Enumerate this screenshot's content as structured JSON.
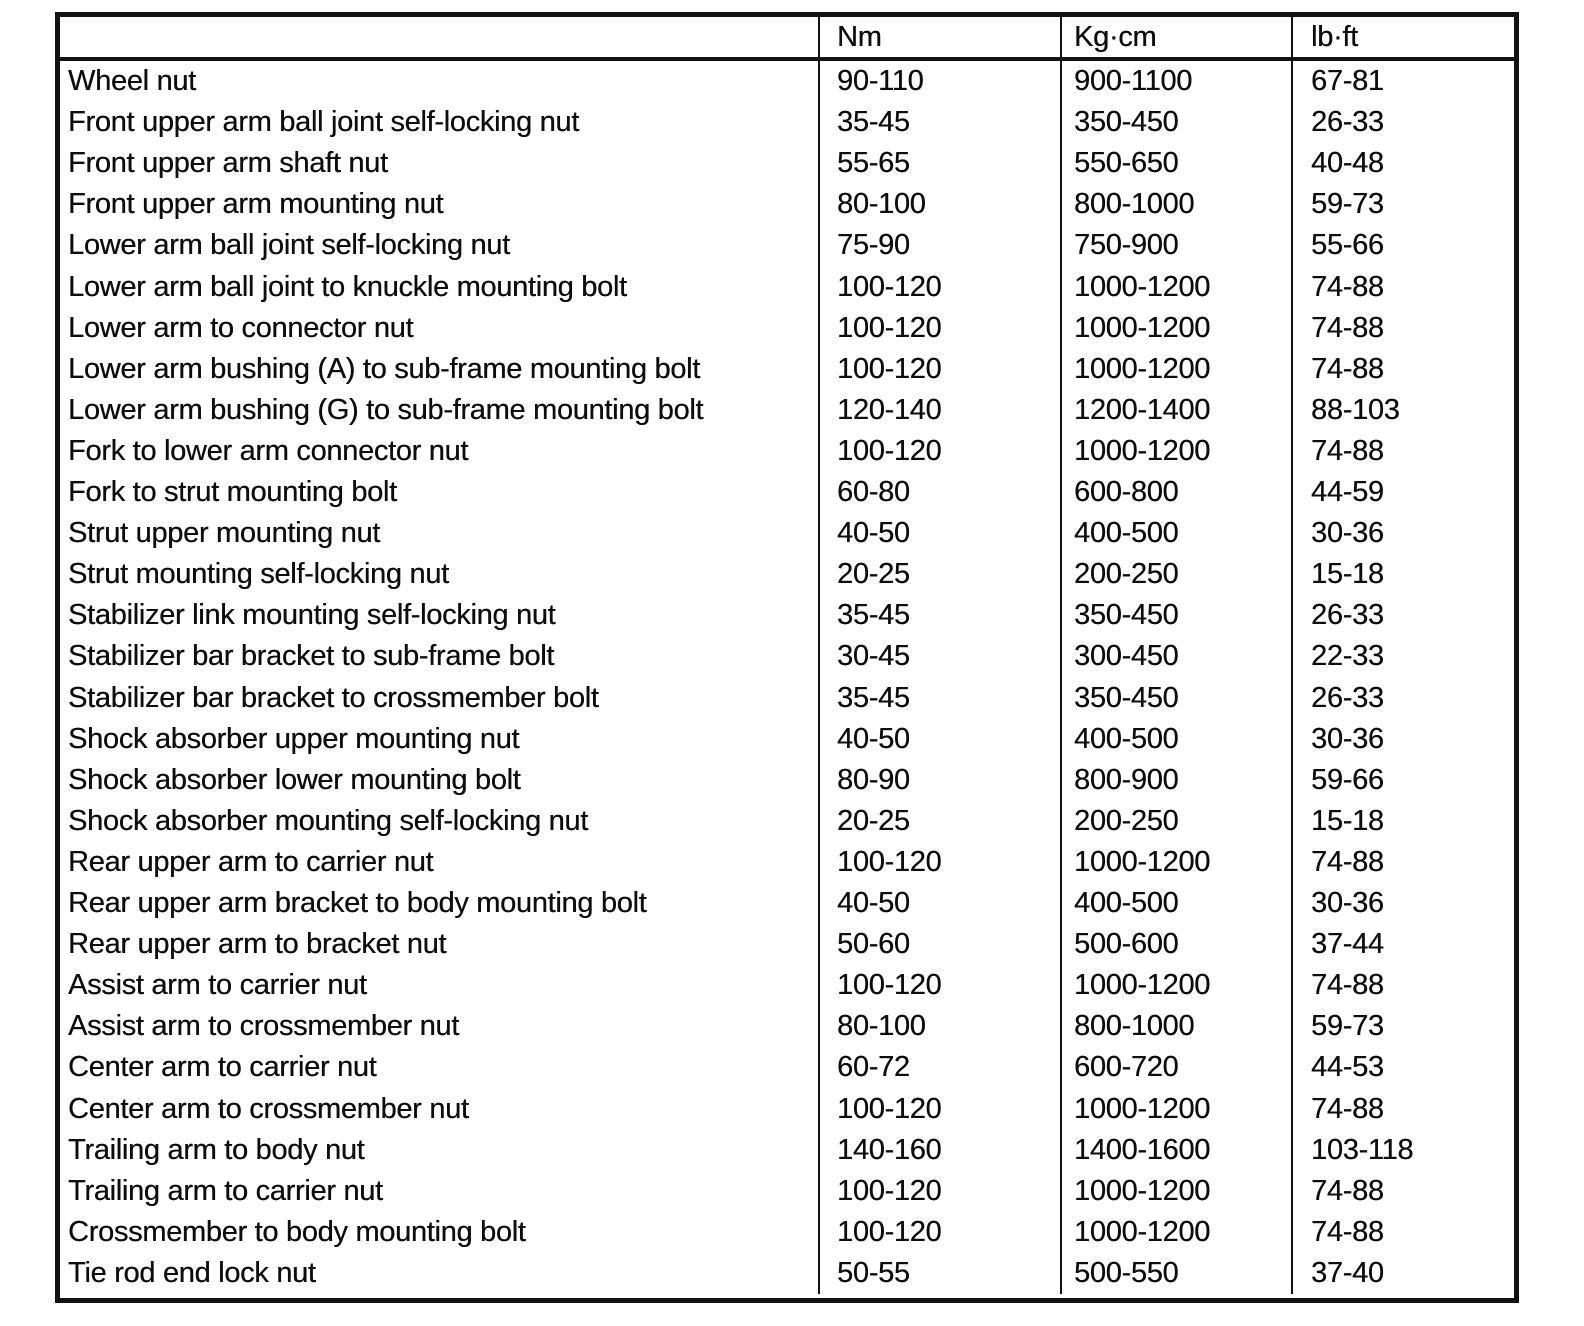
{
  "table": {
    "header": {
      "name": "",
      "nm": "Nm",
      "kgcm": "Kg·cm",
      "lbft": "lb·ft"
    },
    "rows": [
      {
        "name": "Wheel nut",
        "nm": "90-110",
        "kgcm": "900-1100",
        "lbft": "67-81"
      },
      {
        "name": "Front upper arm ball joint self-locking nut",
        "nm": "35-45",
        "kgcm": "350-450",
        "lbft": "26-33"
      },
      {
        "name": "Front upper arm shaft nut",
        "nm": "55-65",
        "kgcm": "550-650",
        "lbft": "40-48"
      },
      {
        "name": "Front upper arm mounting nut",
        "nm": "80-100",
        "kgcm": "800-1000",
        "lbft": "59-73"
      },
      {
        "name": "Lower arm ball joint self-locking nut",
        "nm": "75-90",
        "kgcm": "750-900",
        "lbft": "55-66"
      },
      {
        "name": "Lower arm ball joint to knuckle mounting bolt",
        "nm": "100-120",
        "kgcm": "1000-1200",
        "lbft": "74-88"
      },
      {
        "name": "Lower arm to connector nut",
        "nm": "100-120",
        "kgcm": "1000-1200",
        "lbft": "74-88"
      },
      {
        "name": "Lower arm bushing (A) to sub-frame mounting bolt",
        "nm": "100-120",
        "kgcm": "1000-1200",
        "lbft": "74-88"
      },
      {
        "name": "Lower arm bushing (G) to sub-frame mounting bolt",
        "nm": "120-140",
        "kgcm": "1200-1400",
        "lbft": "88-103"
      },
      {
        "name": "Fork to lower arm connector nut",
        "nm": "100-120",
        "kgcm": "1000-1200",
        "lbft": "74-88"
      },
      {
        "name": "Fork to strut mounting bolt",
        "nm": "60-80",
        "kgcm": "600-800",
        "lbft": "44-59"
      },
      {
        "name": "Strut upper mounting nut",
        "nm": "40-50",
        "kgcm": "400-500",
        "lbft": "30-36"
      },
      {
        "name": "Strut mounting self-locking nut",
        "nm": "20-25",
        "kgcm": "200-250",
        "lbft": "15-18"
      },
      {
        "name": "Stabilizer link mounting self-locking nut",
        "nm": "35-45",
        "kgcm": "350-450",
        "lbft": "26-33"
      },
      {
        "name": "Stabilizer bar bracket to sub-frame bolt",
        "nm": "30-45",
        "kgcm": "300-450",
        "lbft": "22-33"
      },
      {
        "name": "Stabilizer bar bracket to crossmember bolt",
        "nm": "35-45",
        "kgcm": "350-450",
        "lbft": "26-33"
      },
      {
        "name": "Shock absorber upper mounting nut",
        "nm": "40-50",
        "kgcm": "400-500",
        "lbft": "30-36"
      },
      {
        "name": "Shock absorber lower mounting bolt",
        "nm": "80-90",
        "kgcm": "800-900",
        "lbft": "59-66"
      },
      {
        "name": "Shock absorber mounting self-locking nut",
        "nm": "20-25",
        "kgcm": "200-250",
        "lbft": "15-18"
      },
      {
        "name": "Rear upper arm to carrier nut",
        "nm": "100-120",
        "kgcm": "1000-1200",
        "lbft": "74-88"
      },
      {
        "name": "Rear upper arm bracket to body mounting bolt",
        "nm": "40-50",
        "kgcm": "400-500",
        "lbft": "30-36"
      },
      {
        "name": "Rear upper arm to bracket nut",
        "nm": "50-60",
        "kgcm": "500-600",
        "lbft": "37-44"
      },
      {
        "name": "Assist arm to carrier nut",
        "nm": "100-120",
        "kgcm": "1000-1200",
        "lbft": "74-88"
      },
      {
        "name": "Assist arm to crossmember nut",
        "nm": "80-100",
        "kgcm": "800-1000",
        "lbft": "59-73"
      },
      {
        "name": "Center arm to carrier nut",
        "nm": "60-72",
        "kgcm": "600-720",
        "lbft": "44-53"
      },
      {
        "name": "Center arm to crossmember nut",
        "nm": "100-120",
        "kgcm": "1000-1200",
        "lbft": "74-88"
      },
      {
        "name": "Trailing arm to body nut",
        "nm": "140-160",
        "kgcm": "1400-1600",
        "lbft": "103-118"
      },
      {
        "name": "Trailing arm to carrier nut",
        "nm": "100-120",
        "kgcm": "1000-1200",
        "lbft": "74-88"
      },
      {
        "name": "Crossmember to body mounting bolt",
        "nm": "100-120",
        "kgcm": "1000-1200",
        "lbft": "74-88"
      },
      {
        "name": "Tie rod end lock nut",
        "nm": "50-55",
        "kgcm": "500-550",
        "lbft": "37-40"
      }
    ]
  }
}
